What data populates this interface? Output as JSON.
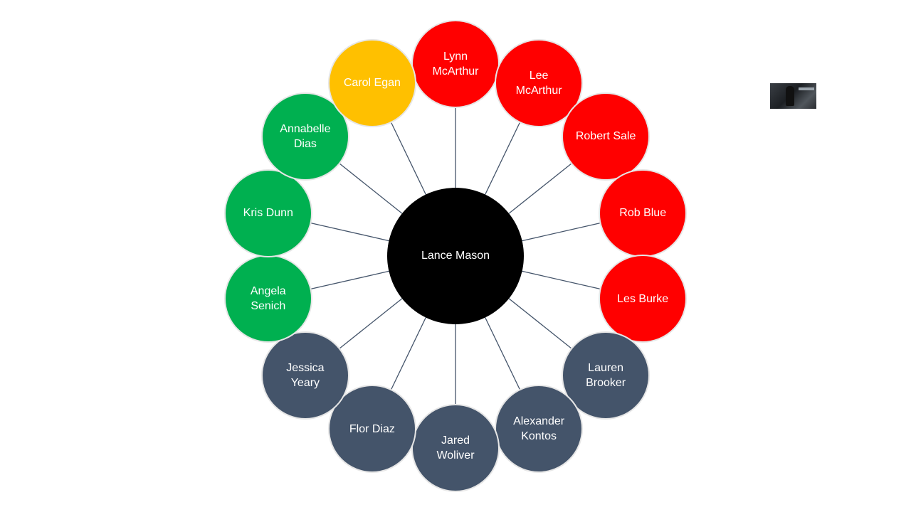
{
  "center": {
    "label": "Lance Mason",
    "color": "#000000"
  },
  "line_color": "#44546a",
  "colors": {
    "red": "#ff0000",
    "yellow": "#ffc000",
    "green": "#00b050",
    "slate": "#44546a"
  },
  "nodes": [
    {
      "label": "Lynn McArthur",
      "group": "red"
    },
    {
      "label": "Lee McArthur",
      "group": "red"
    },
    {
      "label": "Robert Sale",
      "group": "red"
    },
    {
      "label": "Rob Blue",
      "group": "red"
    },
    {
      "label": "Les Burke",
      "group": "red"
    },
    {
      "label": "Lauren Brooker",
      "group": "slate"
    },
    {
      "label": "Alexander Kontos",
      "group": "slate"
    },
    {
      "label": "Jared Woliver",
      "group": "slate"
    },
    {
      "label": "Flor Diaz",
      "group": "slate"
    },
    {
      "label": "Jessica Yeary",
      "group": "slate"
    },
    {
      "label": "Angela Senich",
      "group": "green"
    },
    {
      "label": "Kris Dunn",
      "group": "green"
    },
    {
      "label": "Annabelle Dias",
      "group": "green"
    },
    {
      "label": "Carol Egan",
      "group": "yellow"
    }
  ]
}
